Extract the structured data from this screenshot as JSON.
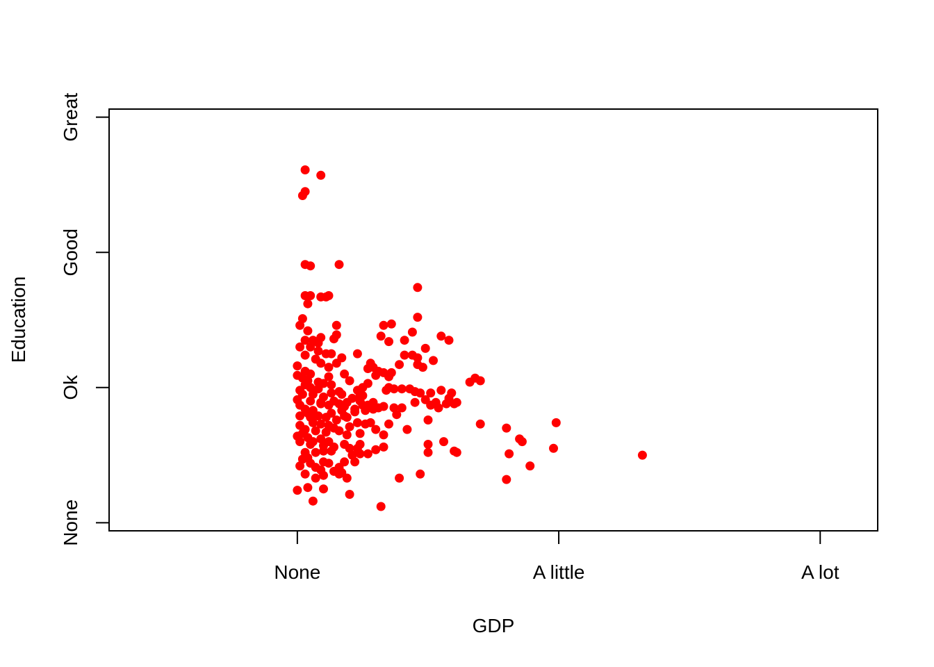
{
  "chart_data": {
    "type": "scatter",
    "title": "",
    "xlabel": "GDP",
    "ylabel": "Education",
    "xlim": [
      -0.72,
      2.22
    ],
    "ylim": [
      -0.06,
      3.06
    ],
    "x_ticks": [
      {
        "value": 0,
        "label": "None"
      },
      {
        "value": 1,
        "label": "A little"
      },
      {
        "value": 2,
        "label": "A lot"
      }
    ],
    "y_ticks": [
      {
        "value": 0,
        "label": "None"
      },
      {
        "value": 1,
        "label": "Ok"
      },
      {
        "value": 2,
        "label": "Good"
      },
      {
        "value": 3,
        "label": "Great"
      }
    ],
    "grid": false,
    "legend": "none",
    "point_color": "#ff0000",
    "series": [
      {
        "points": [
          [
            0.03,
            2.61
          ],
          [
            0.09,
            2.57
          ],
          [
            0.03,
            2.45
          ],
          [
            0.02,
            2.42
          ],
          [
            0.03,
            1.91
          ],
          [
            0.05,
            1.9
          ],
          [
            0.16,
            1.91
          ],
          [
            0.46,
            1.74
          ],
          [
            0.03,
            1.68
          ],
          [
            0.05,
            1.68
          ],
          [
            0.09,
            1.67
          ],
          [
            0.11,
            1.67
          ],
          [
            0.12,
            1.68
          ],
          [
            0.04,
            1.62
          ],
          [
            0.46,
            1.52
          ],
          [
            0.02,
            1.51
          ],
          [
            0.01,
            1.46
          ],
          [
            0.15,
            1.46
          ],
          [
            0.33,
            1.46
          ],
          [
            0.36,
            1.47
          ],
          [
            0.04,
            1.42
          ],
          [
            0.06,
            1.35
          ],
          [
            0.09,
            1.37
          ],
          [
            0.15,
            1.39
          ],
          [
            0.41,
            1.35
          ],
          [
            0.35,
            1.34
          ],
          [
            0.03,
            1.35
          ],
          [
            0.08,
            1.33
          ],
          [
            0.14,
            1.36
          ],
          [
            0.32,
            1.38
          ],
          [
            0.44,
            1.41
          ],
          [
            0.49,
            1.29
          ],
          [
            0.55,
            1.38
          ],
          [
            0.58,
            1.35
          ],
          [
            0.01,
            1.3
          ],
          [
            0.03,
            1.24
          ],
          [
            0.05,
            1.3
          ],
          [
            0.08,
            1.27
          ],
          [
            0.11,
            1.25
          ],
          [
            0.13,
            1.25
          ],
          [
            0.23,
            1.25
          ],
          [
            0.41,
            1.24
          ],
          [
            0.44,
            1.24
          ],
          [
            0.46,
            1.22
          ],
          [
            0.17,
            1.22
          ],
          [
            0.15,
            1.18
          ],
          [
            0.07,
            1.21
          ],
          [
            0.09,
            1.18
          ],
          [
            0.28,
            1.18
          ],
          [
            0.52,
            1.2
          ],
          [
            0.0,
            1.16
          ],
          [
            0.03,
            1.12
          ],
          [
            0.05,
            1.1
          ],
          [
            0.12,
            1.15
          ],
          [
            0.27,
            1.14
          ],
          [
            0.29,
            1.15
          ],
          [
            0.31,
            1.12
          ],
          [
            0.33,
            1.11
          ],
          [
            0.36,
            1.11
          ],
          [
            0.3,
            1.09
          ],
          [
            0.35,
            1.08
          ],
          [
            0.39,
            1.17
          ],
          [
            0.46,
            1.17
          ],
          [
            0.48,
            1.15
          ],
          [
            0.0,
            1.09
          ],
          [
            0.02,
            1.07
          ],
          [
            0.04,
            1.05
          ],
          [
            0.08,
            1.04
          ],
          [
            0.12,
            1.08
          ],
          [
            0.18,
            1.1
          ],
          [
            0.2,
            1.05
          ],
          [
            0.1,
            1.03
          ],
          [
            0.03,
            1.02
          ],
          [
            0.05,
            1.0
          ],
          [
            0.08,
            0.99
          ],
          [
            0.13,
            1.02
          ],
          [
            0.16,
            0.97
          ],
          [
            0.27,
            1.03
          ],
          [
            0.25,
            1.0
          ],
          [
            0.35,
            1.0
          ],
          [
            0.34,
            0.98
          ],
          [
            0.37,
            0.99
          ],
          [
            0.4,
            0.99
          ],
          [
            0.43,
            0.99
          ],
          [
            0.45,
            0.97
          ],
          [
            0.47,
            0.96
          ],
          [
            0.49,
            0.91
          ],
          [
            0.53,
            0.89
          ],
          [
            0.58,
            0.92
          ],
          [
            0.61,
            0.89
          ],
          [
            0.66,
            1.04
          ],
          [
            0.68,
            1.07
          ],
          [
            0.7,
            1.05
          ],
          [
            0.59,
            0.96
          ],
          [
            0.55,
            0.98
          ],
          [
            0.51,
            0.96
          ],
          [
            0.01,
            0.98
          ],
          [
            0.02,
            0.95
          ],
          [
            0.06,
            0.95
          ],
          [
            0.1,
            0.93
          ],
          [
            0.13,
            0.96
          ],
          [
            0.17,
            0.95
          ],
          [
            0.23,
            0.98
          ],
          [
            0.24,
            0.94
          ],
          [
            0.25,
            0.94
          ],
          [
            0.0,
            0.91
          ],
          [
            0.05,
            0.9
          ],
          [
            0.09,
            0.89
          ],
          [
            0.14,
            0.9
          ],
          [
            0.19,
            0.89
          ],
          [
            0.21,
            0.92
          ],
          [
            0.24,
            0.9
          ],
          [
            0.29,
            0.89
          ],
          [
            0.01,
            0.87
          ],
          [
            0.03,
            0.84
          ],
          [
            0.06,
            0.83
          ],
          [
            0.09,
            0.88
          ],
          [
            0.12,
            0.87
          ],
          [
            0.16,
            0.88
          ],
          [
            0.18,
            0.86
          ],
          [
            0.22,
            0.84
          ],
          [
            0.25,
            0.87
          ],
          [
            0.27,
            0.87
          ],
          [
            0.29,
            0.84
          ],
          [
            0.31,
            0.85
          ],
          [
            0.33,
            0.86
          ],
          [
            0.37,
            0.85
          ],
          [
            0.4,
            0.85
          ],
          [
            0.45,
            0.89
          ],
          [
            0.51,
            0.87
          ],
          [
            0.54,
            0.85
          ],
          [
            0.04,
            0.81
          ],
          [
            0.08,
            0.79
          ],
          [
            0.13,
            0.81
          ],
          [
            0.17,
            0.83
          ],
          [
            0.18,
            0.79
          ],
          [
            0.22,
            0.82
          ],
          [
            0.26,
            0.83
          ],
          [
            0.01,
            0.79
          ],
          [
            0.05,
            0.78
          ],
          [
            0.11,
            0.78
          ],
          [
            0.15,
            0.76
          ],
          [
            0.19,
            0.78
          ],
          [
            0.23,
            0.74
          ],
          [
            0.28,
            0.74
          ],
          [
            0.01,
            0.72
          ],
          [
            0.06,
            0.74
          ],
          [
            0.09,
            0.73
          ],
          [
            0.12,
            0.72
          ],
          [
            0.14,
            0.7
          ],
          [
            0.2,
            0.71
          ],
          [
            0.26,
            0.73
          ],
          [
            0.35,
            0.73
          ],
          [
            0.38,
            0.8
          ],
          [
            0.5,
            0.76
          ],
          [
            0.57,
            0.88
          ],
          [
            0.6,
            0.88
          ],
          [
            0.03,
            0.69
          ],
          [
            0.07,
            0.68
          ],
          [
            0.11,
            0.67
          ],
          [
            0.16,
            0.68
          ],
          [
            0.19,
            0.65
          ],
          [
            0.24,
            0.66
          ],
          [
            0.3,
            0.69
          ],
          [
            0.33,
            0.65
          ],
          [
            0.42,
            0.69
          ],
          [
            0.02,
            0.66
          ],
          [
            0.0,
            0.64
          ],
          [
            0.04,
            0.63
          ],
          [
            0.06,
            0.6
          ],
          [
            0.09,
            0.62
          ],
          [
            0.12,
            0.6
          ],
          [
            0.18,
            0.58
          ],
          [
            0.24,
            0.58
          ],
          [
            0.01,
            0.6
          ],
          [
            0.05,
            0.58
          ],
          [
            0.1,
            0.57
          ],
          [
            0.14,
            0.56
          ],
          [
            0.2,
            0.55
          ],
          [
            0.23,
            0.55
          ],
          [
            0.33,
            0.56
          ],
          [
            0.3,
            0.54
          ],
          [
            0.5,
            0.52
          ],
          [
            0.03,
            0.52
          ],
          [
            0.07,
            0.52
          ],
          [
            0.1,
            0.53
          ],
          [
            0.13,
            0.53
          ],
          [
            0.21,
            0.5
          ],
          [
            0.24,
            0.51
          ],
          [
            0.27,
            0.51
          ],
          [
            0.01,
            0.42
          ],
          [
            0.02,
            0.47
          ],
          [
            0.04,
            0.48
          ],
          [
            0.05,
            0.44
          ],
          [
            0.1,
            0.45
          ],
          [
            0.12,
            0.44
          ],
          [
            0.16,
            0.41
          ],
          [
            0.18,
            0.45
          ],
          [
            0.22,
            0.45
          ],
          [
            0.07,
            0.41
          ],
          [
            0.09,
            0.39
          ],
          [
            0.14,
            0.38
          ],
          [
            0.19,
            0.33
          ],
          [
            0.03,
            0.36
          ],
          [
            0.1,
            0.35
          ],
          [
            0.16,
            0.36
          ],
          [
            0.39,
            0.33
          ],
          [
            0.5,
            0.58
          ],
          [
            0.6,
            0.53
          ],
          [
            0.56,
            0.6
          ],
          [
            0.7,
            0.73
          ],
          [
            0.8,
            0.7
          ],
          [
            0.85,
            0.62
          ],
          [
            0.86,
            0.6
          ],
          [
            0.89,
            0.42
          ],
          [
            0.98,
            0.55
          ],
          [
            0.99,
            0.74
          ],
          [
            0.8,
            0.32
          ],
          [
            0.81,
            0.51
          ],
          [
            1.32,
            0.5
          ],
          [
            0.0,
            0.24
          ],
          [
            0.04,
            0.26
          ],
          [
            0.06,
            0.16
          ],
          [
            0.32,
            0.12
          ],
          [
            0.61,
            0.52
          ],
          [
            0.1,
            0.25
          ],
          [
            0.07,
            0.33
          ],
          [
            0.2,
            0.21
          ],
          [
            0.47,
            0.36
          ],
          [
            0.17,
            0.37
          ]
        ]
      }
    ]
  }
}
